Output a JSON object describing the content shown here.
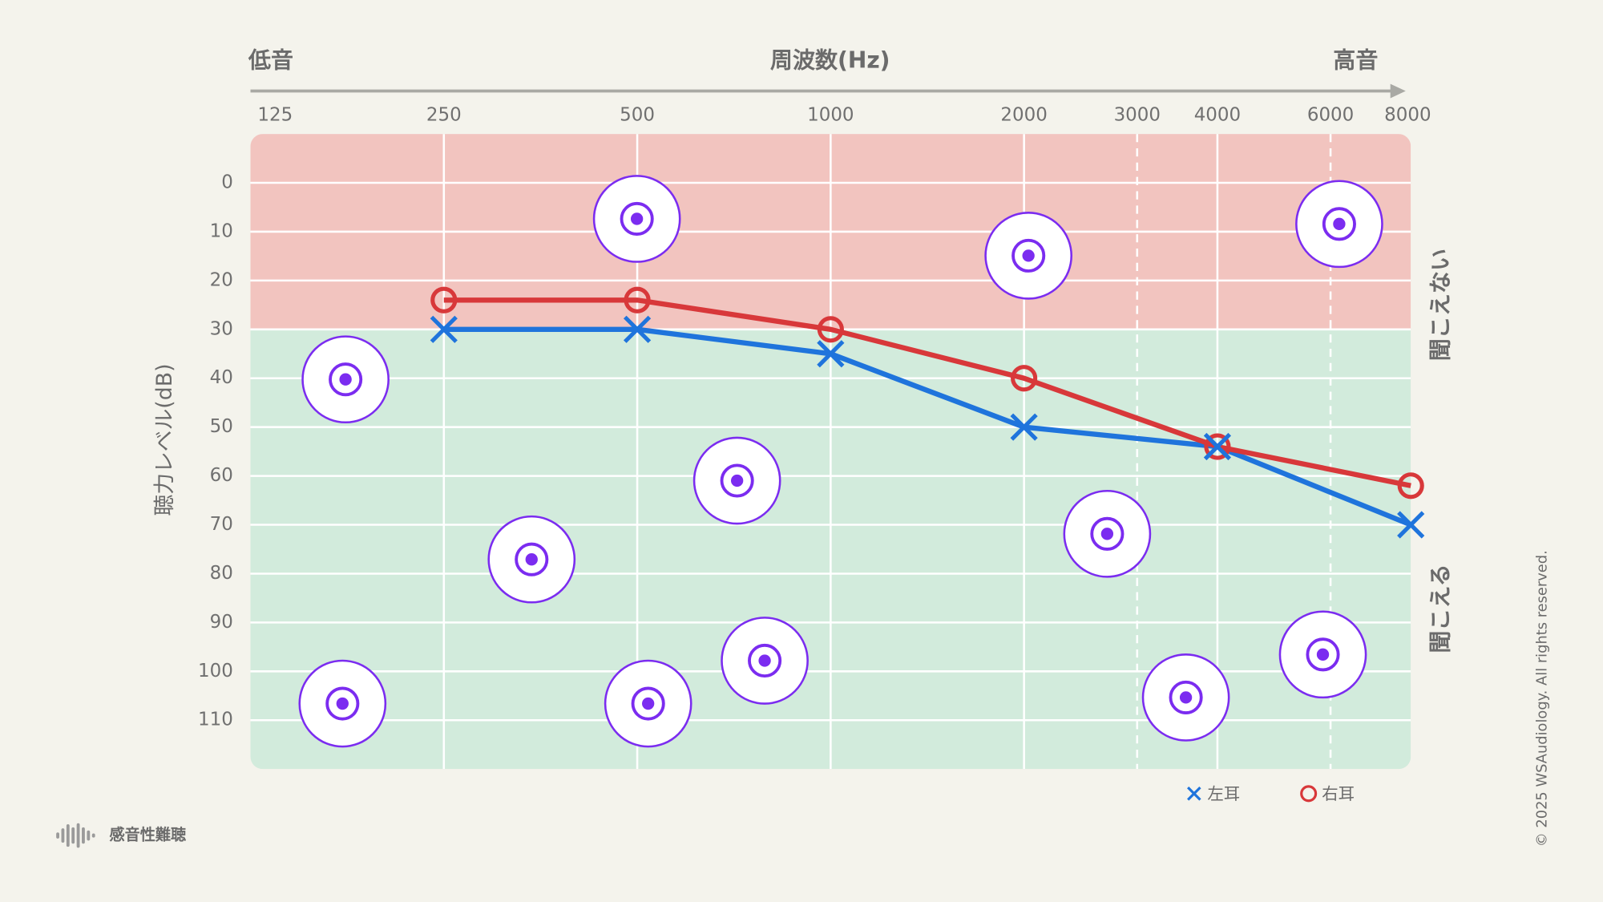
{
  "chart_data": {
    "type": "line",
    "x_label": "周波数(Hz)",
    "x_low_label": "低音",
    "x_high_label": "高音",
    "y_label": "聴力レベル(dB)",
    "x_scale": "log",
    "xlim": [
      125,
      8000
    ],
    "xticks": [
      125,
      250,
      500,
      1000,
      2000,
      4000,
      8000
    ],
    "xticks_dashed": [
      3000,
      6000
    ],
    "ylim": [
      -10,
      120
    ],
    "y_inverted": true,
    "yticks": [
      0,
      10,
      20,
      30,
      40,
      50,
      60,
      70,
      80,
      90,
      100,
      110
    ],
    "grid": true,
    "zones": [
      {
        "name": "聞こえない",
        "range": [
          -10,
          30
        ],
        "color": "#f2c4bf",
        "label_color": "#b3202e"
      },
      {
        "name": "聞こえる",
        "range": [
          30,
          120
        ],
        "color": "#d2ebdc",
        "label_color": "#1f7a5c"
      }
    ],
    "x": [
      250,
      500,
      1000,
      2000,
      4000,
      8000
    ],
    "series": [
      {
        "name": "左耳",
        "color": "#1f74dc",
        "marker": "x",
        "values": [
          30,
          30,
          35,
          50,
          54,
          70
        ]
      },
      {
        "name": "右耳",
        "color": "#d8383a",
        "marker": "o",
        "values": [
          24,
          24,
          30,
          40,
          54,
          62
        ]
      }
    ],
    "legend": "bottom-right"
  },
  "footer": {
    "label": "感音性難聴",
    "copyright": "© 2025 WSAudiology. All rights reserved."
  }
}
